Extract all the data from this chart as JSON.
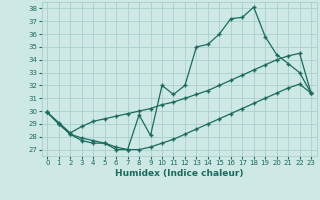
{
  "xlabel": "Humidex (Indice chaleur)",
  "ylabel": "",
  "xlim": [
    -0.5,
    23.5
  ],
  "ylim": [
    26.5,
    38.5
  ],
  "xticks": [
    0,
    1,
    2,
    3,
    4,
    5,
    6,
    7,
    8,
    9,
    10,
    11,
    12,
    13,
    14,
    15,
    16,
    17,
    18,
    19,
    20,
    21,
    22,
    23
  ],
  "yticks": [
    27,
    28,
    29,
    30,
    31,
    32,
    33,
    34,
    35,
    36,
    37,
    38
  ],
  "bg_color": "#cde8e5",
  "grid_color": "#aacfcc",
  "line_color": "#1a6b5e",
  "line1_x": [
    0,
    1,
    2,
    3,
    4,
    5,
    6,
    7,
    8,
    9,
    10,
    11,
    12,
    13,
    14,
    15,
    16,
    17,
    18,
    19,
    20,
    21,
    22,
    23
  ],
  "line1_y": [
    29.9,
    29.0,
    28.2,
    27.7,
    27.5,
    27.5,
    27.0,
    27.0,
    29.7,
    28.1,
    32.0,
    31.3,
    32.0,
    35.0,
    35.2,
    36.0,
    37.2,
    37.3,
    38.1,
    35.8,
    34.4,
    33.7,
    33.0,
    31.4
  ],
  "line2_x": [
    0,
    1,
    2,
    3,
    4,
    5,
    6,
    7,
    8,
    9,
    10,
    11,
    12,
    13,
    14,
    15,
    16,
    17,
    18,
    19,
    20,
    21,
    22,
    23
  ],
  "line2_y": [
    29.9,
    29.1,
    28.3,
    28.8,
    29.2,
    29.4,
    29.6,
    29.8,
    30.0,
    30.2,
    30.5,
    30.7,
    31.0,
    31.3,
    31.6,
    32.0,
    32.4,
    32.8,
    33.2,
    33.6,
    34.0,
    34.3,
    34.5,
    31.4
  ],
  "line3_x": [
    0,
    1,
    2,
    3,
    4,
    5,
    6,
    7,
    8,
    9,
    10,
    11,
    12,
    13,
    14,
    15,
    16,
    17,
    18,
    19,
    20,
    21,
    22,
    23
  ],
  "line3_y": [
    29.9,
    29.0,
    28.2,
    27.9,
    27.7,
    27.5,
    27.2,
    27.0,
    27.0,
    27.2,
    27.5,
    27.8,
    28.2,
    28.6,
    29.0,
    29.4,
    29.8,
    30.2,
    30.6,
    31.0,
    31.4,
    31.8,
    32.1,
    31.4
  ]
}
